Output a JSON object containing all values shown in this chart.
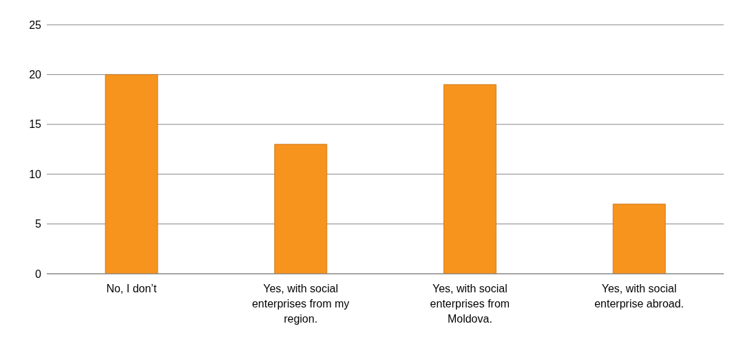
{
  "chart_data": {
    "type": "bar",
    "categories": [
      "No, I don’t",
      "Yes, with social enterprises from my region.",
      "Yes, with social enterprises from Moldova.",
      "Yes, with social enterprise abroad."
    ],
    "values": [
      20,
      13,
      19,
      7
    ],
    "color": "#f7941d",
    "ylim": [
      0,
      25
    ],
    "yticks": [
      0,
      5,
      10,
      15,
      20,
      25
    ],
    "grid": "y"
  }
}
